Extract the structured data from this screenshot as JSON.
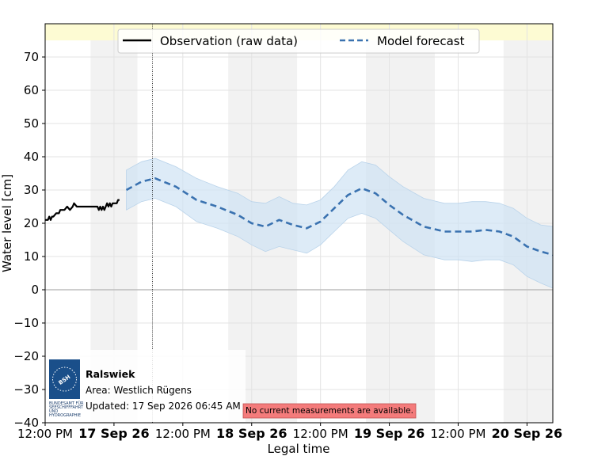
{
  "chart_data": {
    "type": "line",
    "ylabel": "Water level [cm]",
    "xlabel": "Legal time",
    "ylim": [
      -40,
      80
    ],
    "xlim": [
      0,
      3.6875
    ],
    "y_ticks": [
      -40,
      -30,
      -20,
      -10,
      0,
      10,
      20,
      30,
      40,
      50,
      60,
      70
    ],
    "x_ticks": [
      {
        "x": 0,
        "label": "12:00 PM",
        "bold": false
      },
      {
        "x": 0.5,
        "label": "17 Sep 26",
        "bold": true
      },
      {
        "x": 1.0,
        "label": "12:00 PM",
        "bold": false
      },
      {
        "x": 1.5,
        "label": "18 Sep 26",
        "bold": true
      },
      {
        "x": 2.0,
        "label": "12:00 PM",
        "bold": false
      },
      {
        "x": 2.5,
        "label": "19 Sep 26",
        "bold": true
      },
      {
        "x": 3.0,
        "label": "12:00 PM",
        "bold": false
      },
      {
        "x": 3.5,
        "label": "20 Sep 26",
        "bold": true
      }
    ],
    "grid": true,
    "legend_position": "top-center",
    "night_bands": [
      [
        0.33,
        0.67
      ],
      [
        1.33,
        1.83
      ],
      [
        2.33,
        2.83
      ],
      [
        3.33,
        3.6875
      ]
    ],
    "now_line_x": 0.78,
    "series": [
      {
        "name": "Observation (raw data)",
        "style": "solid",
        "color": "#000000",
        "x": [
          0,
          0.02,
          0.03,
          0.04,
          0.05,
          0.06,
          0.08,
          0.1,
          0.11,
          0.14,
          0.16,
          0.18,
          0.2,
          0.21,
          0.23,
          0.24,
          0.25,
          0.26,
          0.28,
          0.3,
          0.32,
          0.34,
          0.36,
          0.38,
          0.39,
          0.4,
          0.41,
          0.42,
          0.43,
          0.44,
          0.45,
          0.46,
          0.47,
          0.48,
          0.49,
          0.5,
          0.51,
          0.52,
          0.53,
          0.54
        ],
        "values": [
          21,
          21,
          22,
          21,
          22,
          22,
          23,
          23,
          24,
          24,
          25,
          24,
          25,
          26,
          25,
          25,
          25,
          25,
          25,
          25,
          25,
          25,
          25,
          25,
          24,
          25,
          24,
          25,
          24,
          25,
          26,
          25,
          26,
          25,
          26,
          26,
          26,
          26,
          27,
          27
        ]
      },
      {
        "name": "Model forecast",
        "style": "dashed",
        "color": "#3a72b0",
        "x": [
          0.59,
          0.7,
          0.8,
          0.95,
          1.1,
          1.25,
          1.4,
          1.5,
          1.6,
          1.7,
          1.8,
          1.9,
          2.0,
          2.1,
          2.2,
          2.3,
          2.4,
          2.5,
          2.6,
          2.75,
          2.9,
          3.0,
          3.1,
          3.2,
          3.3,
          3.4,
          3.5,
          3.6,
          3.6875
        ],
        "values": [
          30,
          32.5,
          33.5,
          31,
          27,
          25,
          22.5,
          20,
          19,
          21,
          19.5,
          18.5,
          20.5,
          24.5,
          28.5,
          30.5,
          29,
          25.5,
          22.5,
          19,
          17.5,
          17.5,
          17.5,
          18,
          17.5,
          16,
          13,
          11.5,
          10.5
        ],
        "upper": [
          36,
          38.5,
          39.5,
          37,
          33.5,
          31,
          29,
          26.5,
          26,
          28,
          26,
          25.5,
          27,
          31,
          36,
          38.5,
          37.5,
          34,
          31,
          27.5,
          26,
          26,
          26.5,
          26.5,
          26,
          24.5,
          21.5,
          19.5,
          19
        ],
        "lower": [
          24,
          26.5,
          27.5,
          25,
          20.5,
          18.5,
          16,
          13.5,
          11.5,
          13,
          12,
          11,
          13.5,
          17.5,
          21.5,
          23,
          21.5,
          18,
          14.5,
          10.5,
          9,
          9,
          8.5,
          9,
          9,
          7.5,
          4,
          2,
          0.5
        ]
      }
    ],
    "colors": {
      "observation": "#000000",
      "forecast": "#3a72b0",
      "forecast_band": "#cfe2f3",
      "night_band": "#f2f2f2",
      "warning_band": "#fdfbd3",
      "notice_bg": "#f47b7b"
    }
  },
  "info_box": {
    "station": "Ralswiek",
    "area": "Area: Westlich Rügens",
    "updated": "Updated: 17 Sep 2026 06:45 AM",
    "logo_text": [
      "BSH"
    ],
    "logo_caption": [
      "BUNDESAMT FÜR",
      "SEESCHIFFFAHRT",
      "UND",
      "HYDROGRAPHIE"
    ]
  },
  "notice": "No current measurements are available."
}
